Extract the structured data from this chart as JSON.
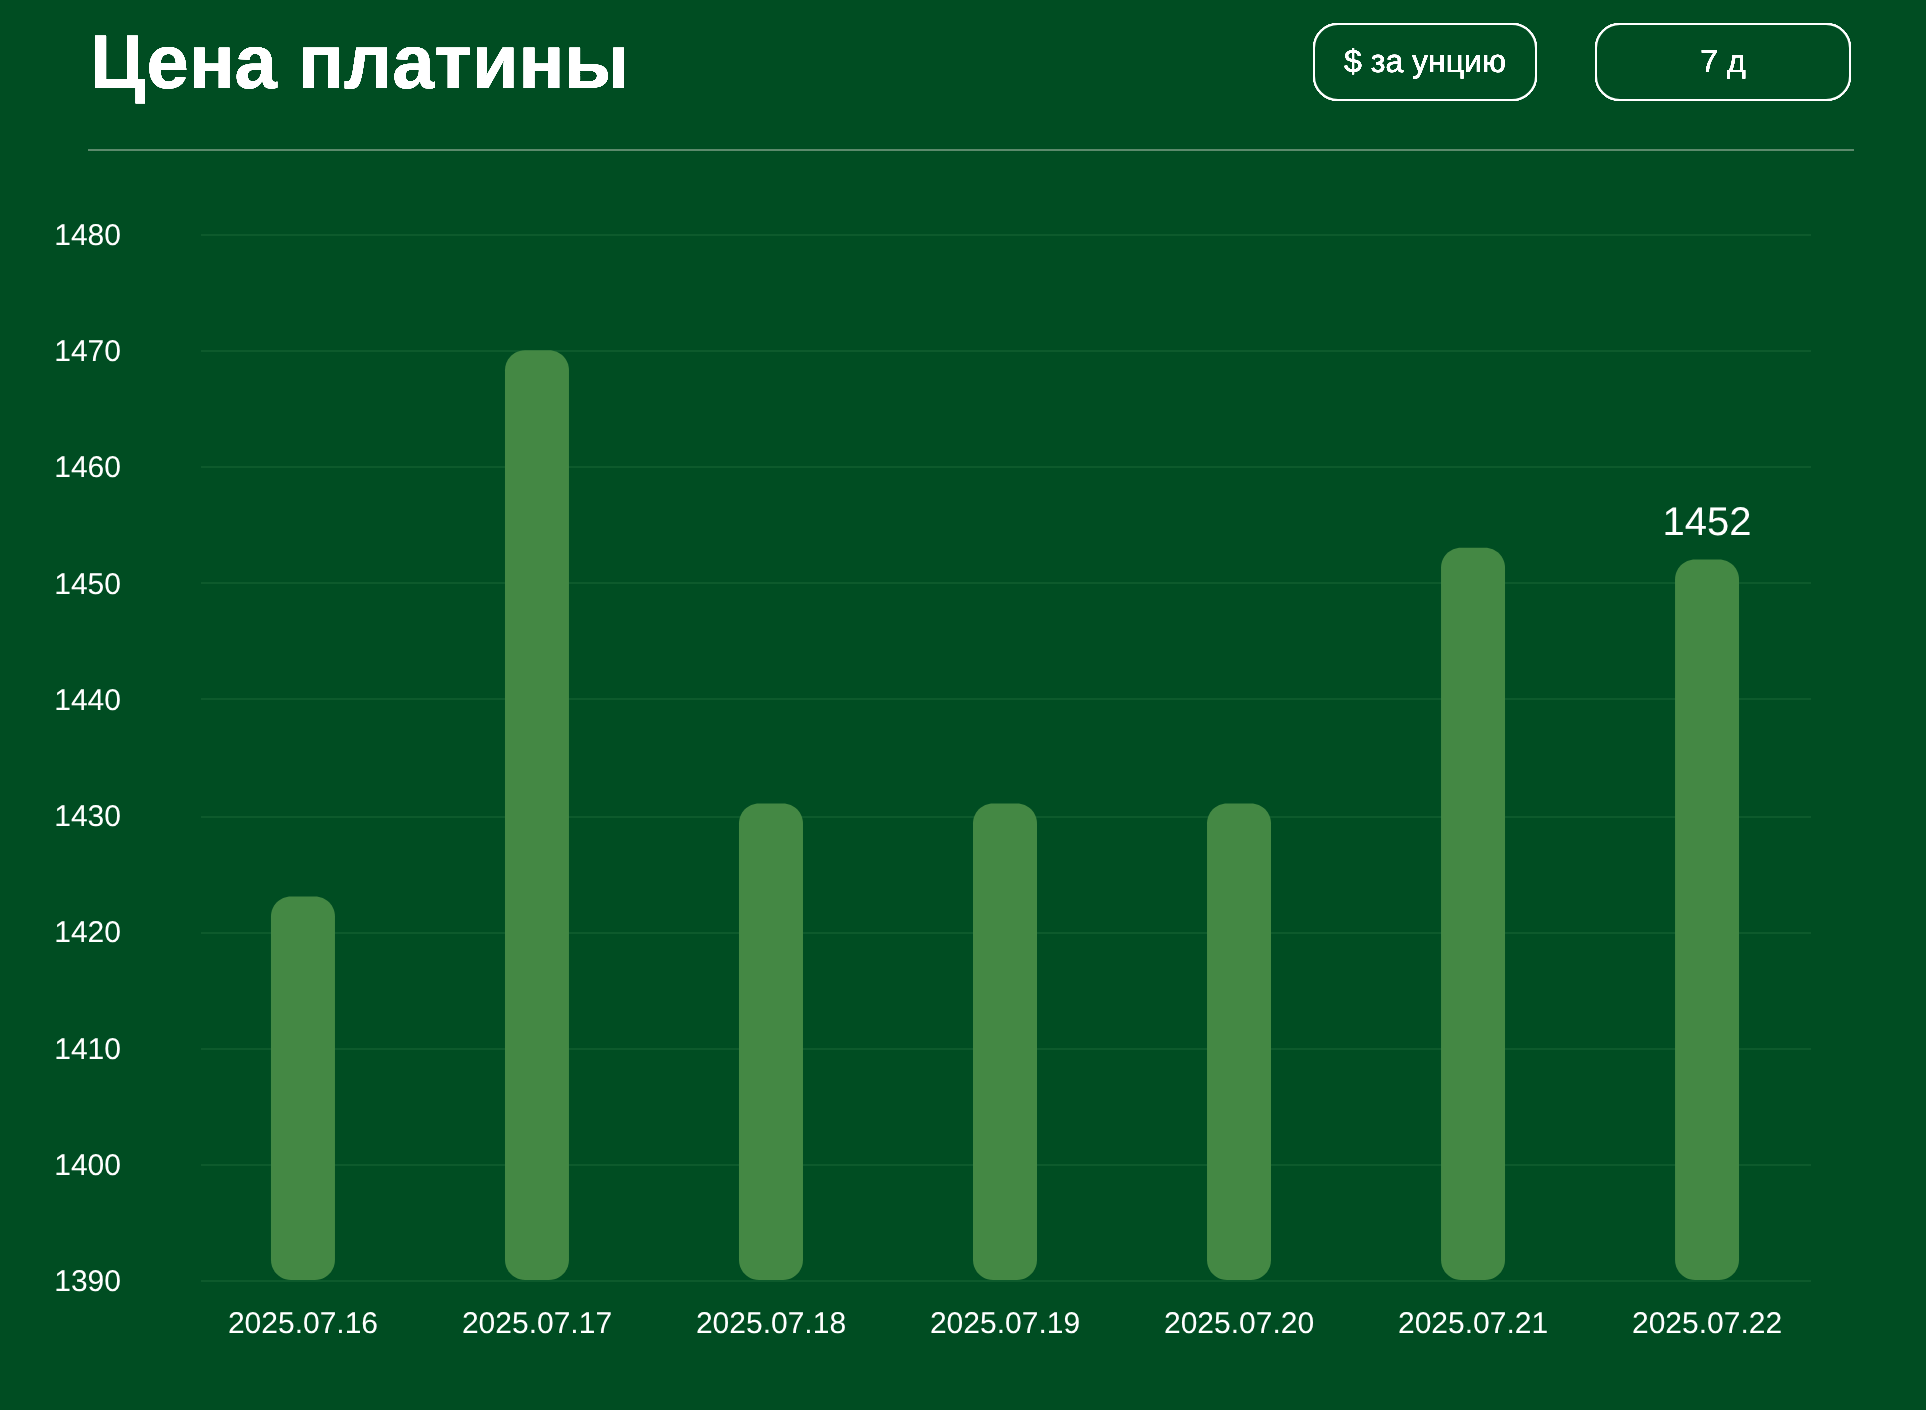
{
  "chart_data": {
    "type": "bar",
    "title": "Цена платины",
    "annotations": [
      "$ за унцию",
      "7 д"
    ],
    "categories": [
      "2025.07.16",
      "2025.07.17",
      "2025.07.18",
      "2025.07.19",
      "2025.07.20",
      "2025.07.21",
      "2025.07.22"
    ],
    "values": [
      1423,
      1470,
      1431,
      1431,
      1431,
      1453,
      1452
    ],
    "value_labels": [
      null,
      null,
      null,
      null,
      null,
      null,
      "1452"
    ],
    "color": "#448844",
    "ylim": [
      1390,
      1480
    ],
    "yticks": [
      1390,
      1400,
      1410,
      1420,
      1430,
      1440,
      1450,
      1460,
      1470,
      1480
    ],
    "grid": "y"
  }
}
